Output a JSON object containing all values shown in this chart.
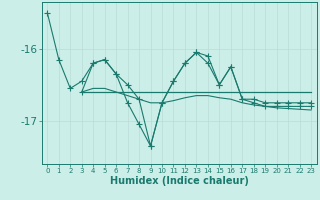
{
  "xlabel": "Humidex (Indice chaleur)",
  "x_all": [
    0,
    1,
    2,
    3,
    4,
    5,
    6,
    7,
    8,
    9,
    10,
    11,
    12,
    13,
    14,
    15,
    16,
    17,
    18,
    19,
    20,
    21,
    22,
    23
  ],
  "line1_x": [
    0,
    1,
    2,
    3,
    4,
    5,
    6,
    7,
    8,
    9,
    10,
    11,
    12,
    13,
    14,
    15,
    16,
    17,
    18,
    19,
    20,
    21,
    22,
    23
  ],
  "line1_y": [
    -15.5,
    -16.15,
    -16.55,
    -16.45,
    -16.2,
    -16.15,
    -16.35,
    -16.5,
    -16.7,
    -17.35,
    -16.75,
    -16.45,
    -16.2,
    -16.05,
    -16.2,
    -16.5,
    -16.25,
    -16.7,
    -16.75,
    -16.8,
    -16.8,
    -16.8,
    -16.8,
    -16.8
  ],
  "line2_x": [
    3,
    4,
    5,
    6,
    7,
    8,
    9,
    10,
    11,
    12,
    13,
    14,
    15,
    16,
    17,
    18,
    19,
    20,
    21,
    22,
    23
  ],
  "line2_y": [
    -16.6,
    -16.2,
    -16.15,
    -16.35,
    -16.75,
    -17.05,
    -17.35,
    -16.75,
    -16.45,
    -16.2,
    -16.05,
    -16.1,
    -16.5,
    -16.25,
    -16.7,
    -16.7,
    -16.75,
    -16.75,
    -16.75,
    -16.75,
    -16.75
  ],
  "line3_x": [
    3,
    4,
    5,
    6,
    7,
    8,
    9,
    10,
    11,
    12,
    13,
    14,
    15,
    16,
    17,
    18,
    19,
    20,
    21,
    22,
    23
  ],
  "line3_y": [
    -16.6,
    -16.55,
    -16.55,
    -16.6,
    -16.65,
    -16.7,
    -16.75,
    -16.75,
    -16.72,
    -16.68,
    -16.65,
    -16.65,
    -16.68,
    -16.7,
    -16.75,
    -16.78,
    -16.8,
    -16.82,
    -16.83,
    -16.84,
    -16.85
  ],
  "line4_x": [
    3,
    4,
    5,
    6,
    7,
    8,
    9,
    10,
    11,
    12,
    13,
    14,
    15,
    16,
    17,
    18,
    19,
    20,
    21,
    22,
    23
  ],
  "line4_y": [
    -16.6,
    -16.6,
    -16.6,
    -16.6,
    -16.6,
    -16.6,
    -16.6,
    -16.6,
    -16.6,
    -16.6,
    -16.6,
    -16.6,
    -16.6,
    -16.6,
    -16.6,
    -16.6,
    -16.6,
    -16.6,
    -16.6,
    -16.6,
    -16.6
  ],
  "bg_color": "#cceee8",
  "line_color": "#1a7a6e",
  "grid_color": "#b8ddd6",
  "ylim": [
    -17.6,
    -15.35
  ],
  "yticks": [
    -17.0,
    -16.0
  ],
  "ytick_labels": [
    "-17",
    "-16"
  ],
  "xlim": [
    -0.5,
    23.5
  ]
}
